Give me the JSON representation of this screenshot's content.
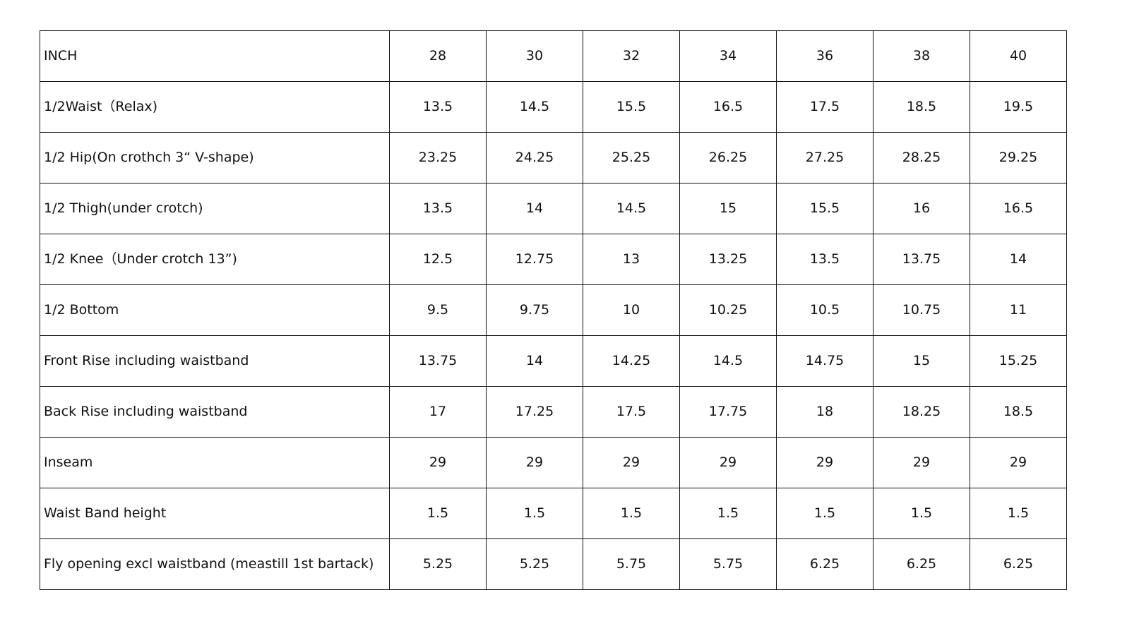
{
  "table": {
    "header": {
      "label": "INCH",
      "sizes": [
        "28",
        "30",
        "32",
        "34",
        "36",
        "38",
        "40"
      ]
    },
    "rows": [
      {
        "label": "1/2Waist（Relax)",
        "values": [
          "13.5",
          "14.5",
          "15.5",
          "16.5",
          "17.5",
          "18.5",
          "19.5"
        ]
      },
      {
        "label": "1/2 Hip(On crothch 3“ V-shape)",
        "values": [
          "23.25",
          "24.25",
          "25.25",
          "26.25",
          "27.25",
          "28.25",
          "29.25"
        ]
      },
      {
        "label": "1/2 Thigh(under crotch)",
        "values": [
          "13.5",
          "14",
          "14.5",
          "15",
          "15.5",
          "16",
          "16.5"
        ]
      },
      {
        "label": "1/2 Knee（Under crotch 13”)",
        "values": [
          "12.5",
          "12.75",
          "13",
          "13.25",
          "13.5",
          "13.75",
          "14"
        ]
      },
      {
        "label": "1/2 Bottom",
        "values": [
          "9.5",
          "9.75",
          "10",
          "10.25",
          "10.5",
          "10.75",
          "11"
        ]
      },
      {
        "label": "Front Rise including waistband",
        "values": [
          "13.75",
          "14",
          "14.25",
          "14.5",
          "14.75",
          "15",
          "15.25"
        ]
      },
      {
        "label": "Back Rise including waistband",
        "values": [
          "17",
          "17.25",
          "17.5",
          "17.75",
          "18",
          "18.25",
          "18.5"
        ]
      },
      {
        "label": "Inseam",
        "values": [
          "29",
          "29",
          "29",
          "29",
          "29",
          "29",
          "29"
        ]
      },
      {
        "label": "Waist Band height",
        "values": [
          "1.5",
          "1.5",
          "1.5",
          "1.5",
          "1.5",
          "1.5",
          "1.5"
        ]
      },
      {
        "label": "Fly opening excl waistband (meastill 1st bartack)",
        "values": [
          "5.25",
          "5.25",
          "5.75",
          "5.75",
          "6.25",
          "6.25",
          "6.25"
        ]
      }
    ]
  }
}
